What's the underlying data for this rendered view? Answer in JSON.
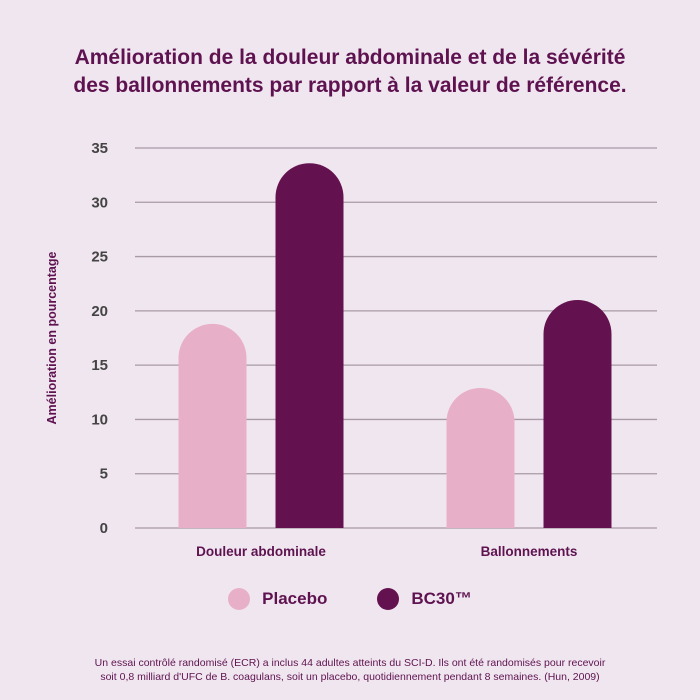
{
  "title_lines": [
    "Amélioration de la douleur abdominale et de la sévérité",
    "des ballonnements par rapport à la valeur de référence."
  ],
  "footnote_lines": [
    "Un essai contrôlé randomisé (ECR) a inclus 44 adultes atteints du SCI-D. Ils ont été randomisés pour recevoir",
    "soit 0,8 milliard d'UFC de B. coagulans, soit un placebo, quotidiennement pendant 8 semaines. (Hun, 2009)"
  ],
  "chart_data": {
    "type": "bar",
    "title": "Amélioration de la douleur abdominale et de la sévérité des ballonnements par rapport à la valeur de référence.",
    "xlabel": "",
    "ylabel": "Amélioration en pourcentage",
    "categories": [
      "Douleur abdominale",
      "Ballonnements"
    ],
    "series": [
      {
        "name": "Placebo",
        "color": "#e8b0c8",
        "values": [
          18.8,
          12.9
        ]
      },
      {
        "name": "BC30™",
        "color": "#64124f",
        "values": [
          33.6,
          21.0
        ]
      }
    ],
    "ylim": [
      0,
      35
    ],
    "yticks": [
      0,
      5,
      10,
      15,
      20,
      25,
      30,
      35
    ],
    "grid": true,
    "legend_position": "bottom-center"
  }
}
